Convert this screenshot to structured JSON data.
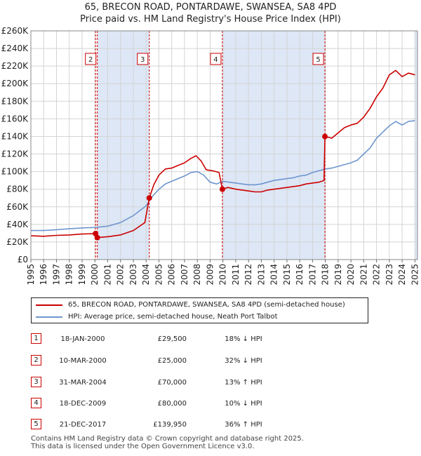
{
  "title_line1": "65, BRECON ROAD, PONTARDAWE, SWANSEA, SA8 4PD",
  "title_line2": "Price paid vs. HM Land Registry's House Price Index (HPI)",
  "colors": {
    "property": "#cc0000",
    "hpi": "#6f96cf",
    "shade": "#dde7f6",
    "grid": "#d4d4d4",
    "vline": "#cc0000"
  },
  "legend": {
    "property_label": "65, BRECON ROAD, PONTARDAWE, SWANSEA, SA8 4PD (semi-detached house)",
    "hpi_label": "HPI: Average price, semi-detached house, Neath Port Talbot"
  },
  "sales": [
    {
      "num": "1",
      "date": "18-JAN-2000",
      "price": "£29,500",
      "hpi": "18% ↓ HPI"
    },
    {
      "num": "2",
      "date": "10-MAR-2000",
      "price": "£25,000",
      "hpi": "32% ↓ HPI"
    },
    {
      "num": "3",
      "date": "31-MAR-2004",
      "price": "£70,000",
      "hpi": "13% ↑ HPI"
    },
    {
      "num": "4",
      "date": "18-DEC-2009",
      "price": "£80,000",
      "hpi": "10% ↓ HPI"
    },
    {
      "num": "5",
      "date": "21-DEC-2017",
      "price": "£139,950",
      "hpi": "36% ↑ HPI"
    }
  ],
  "footer_line1": "Contains HM Land Registry data © Crown copyright and database right 2025.",
  "footer_line2": "This data is licensed under the Open Government Licence v3.0.",
  "chart_data": {
    "type": "line",
    "title": "65, BRECON ROAD, PONTARDAWE, SWANSEA, SA8 4PD — Price paid vs. HM Land Registry's House Price Index (HPI)",
    "xlabel": "",
    "ylabel": "",
    "xlim": [
      1995,
      2025.2
    ],
    "ylim": [
      0,
      260000
    ],
    "grid": true,
    "y_ticks": [
      0,
      20000,
      40000,
      60000,
      80000,
      100000,
      120000,
      140000,
      160000,
      180000,
      200000,
      220000,
      240000,
      260000
    ],
    "y_tick_labels": [
      "£0",
      "£20K",
      "£40K",
      "£60K",
      "£80K",
      "£100K",
      "£120K",
      "£140K",
      "£160K",
      "£180K",
      "£200K",
      "£220K",
      "£240K",
      "£260K"
    ],
    "x_ticks": [
      1995,
      1996,
      1997,
      1998,
      1999,
      2000,
      2001,
      2002,
      2003,
      2004,
      2005,
      2006,
      2007,
      2008,
      2009,
      2010,
      2011,
      2012,
      2013,
      2014,
      2015,
      2016,
      2017,
      2018,
      2019,
      2020,
      2021,
      2022,
      2023,
      2024,
      2025
    ],
    "shaded_ranges": [
      [
        2000.2,
        2004.25
      ],
      [
        2009.96,
        2017.97
      ],
      [
        2025.0,
        2025.2
      ]
    ],
    "series": [
      {
        "name": "65, BRECON ROAD, PONTARDAWE, SWANSEA, SA8 4PD (semi-detached house)",
        "x": [
          1995,
          1996,
          1997,
          1998,
          1999,
          2000.05,
          2000.19,
          2001,
          2002,
          2003,
          2003.9,
          2004.25,
          2004.6,
          2005,
          2005.5,
          2006,
          2006.5,
          2007,
          2007.5,
          2007.9,
          2008.3,
          2008.7,
          2009.2,
          2009.7,
          2009.96,
          2010.4,
          2011,
          2011.5,
          2012,
          2012.5,
          2013,
          2013.5,
          2014,
          2014.5,
          2015,
          2015.5,
          2016,
          2016.5,
          2017,
          2017.5,
          2017.9,
          2017.97,
          2018.5,
          2019,
          2019.5,
          2020,
          2020.5,
          2021,
          2021.5,
          2022,
          2022.5,
          2023,
          2023.5,
          2024,
          2024.5,
          2025
        ],
        "y": [
          27000,
          26500,
          27500,
          28000,
          29000,
          29500,
          25000,
          26000,
          28000,
          33000,
          42000,
          70000,
          85000,
          96000,
          103000,
          104000,
          107000,
          110000,
          115000,
          118000,
          112000,
          102000,
          101000,
          99000,
          80000,
          82000,
          80000,
          79000,
          78000,
          77000,
          77000,
          79000,
          80000,
          81000,
          82000,
          83000,
          84000,
          86000,
          87000,
          88000,
          90000,
          139950,
          138000,
          144000,
          150000,
          153000,
          155000,
          162000,
          172000,
          185000,
          195000,
          210000,
          215000,
          208000,
          212000,
          210000
        ]
      },
      {
        "name": "HPI: Average price, semi-detached house, Neath Port Talbot",
        "x": [
          1995,
          1996,
          1997,
          1998,
          1999,
          2000,
          2001,
          2002,
          2003,
          2004,
          2004.5,
          2005,
          2005.5,
          2006,
          2006.5,
          2007,
          2007.5,
          2008,
          2008.5,
          2009,
          2009.5,
          2010,
          2010.5,
          2011,
          2011.5,
          2012,
          2012.5,
          2013,
          2013.5,
          2014,
          2014.5,
          2015,
          2015.5,
          2016,
          2016.5,
          2017,
          2017.5,
          2018,
          2018.5,
          2019,
          2019.5,
          2020,
          2020.5,
          2021,
          2021.5,
          2022,
          2022.5,
          2023,
          2023.5,
          2024,
          2024.5,
          2025
        ],
        "y": [
          33000,
          33000,
          34000,
          35000,
          36000,
          36500,
          38000,
          42000,
          50000,
          61000,
          72000,
          80000,
          86000,
          89000,
          92000,
          95000,
          99000,
          100000,
          96000,
          88000,
          86000,
          89000,
          88000,
          87000,
          86000,
          85000,
          85000,
          86000,
          88000,
          90000,
          91000,
          92000,
          93000,
          95000,
          96000,
          99000,
          101000,
          103000,
          104000,
          106000,
          108000,
          110000,
          113000,
          120000,
          127000,
          138000,
          145000,
          152000,
          157000,
          153000,
          157000,
          158000
        ]
      }
    ],
    "sale_markers": [
      {
        "label": "1",
        "x": 2000.05,
        "y": 29500
      },
      {
        "label": "2",
        "x": 2000.19,
        "y": 25000
      },
      {
        "label": "3",
        "x": 2004.25,
        "y": 70000
      },
      {
        "label": "4",
        "x": 2009.96,
        "y": 80000
      },
      {
        "label": "5",
        "x": 2017.97,
        "y": 139950
      }
    ],
    "marker_boxes": [
      "2",
      "3",
      "4",
      "5"
    ]
  }
}
